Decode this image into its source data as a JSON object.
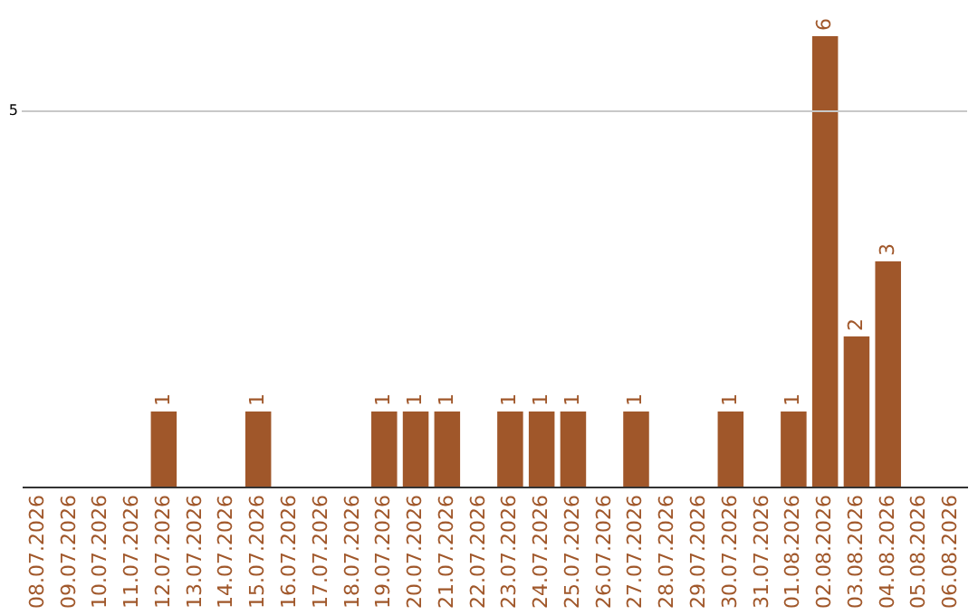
{
  "chart_data": {
    "type": "bar",
    "categories": [
      "08.07.2026",
      "09.07.2026",
      "10.07.2026",
      "11.07.2026",
      "12.07.2026",
      "13.07.2026",
      "14.07.2026",
      "15.07.2026",
      "16.07.2026",
      "17.07.2026",
      "18.07.2026",
      "19.07.2026",
      "20.07.2026",
      "21.07.2026",
      "22.07.2026",
      "23.07.2026",
      "24.07.2026",
      "25.07.2026",
      "26.07.2026",
      "27.07.2026",
      "28.07.2026",
      "29.07.2026",
      "30.07.2026",
      "31.07.2026",
      "01.08.2026",
      "02.08.2026",
      "03.08.2026",
      "04.08.2026",
      "05.08.2026",
      "06.08.2026"
    ],
    "values": [
      0,
      0,
      0,
      0,
      1,
      0,
      0,
      1,
      0,
      0,
      0,
      1,
      1,
      1,
      0,
      1,
      1,
      1,
      0,
      1,
      0,
      0,
      1,
      0,
      1,
      6,
      2,
      3,
      0,
      0
    ],
    "value_labels": [
      null,
      null,
      null,
      null,
      "1",
      null,
      null,
      "1",
      null,
      null,
      null,
      "1",
      "1",
      "1",
      null,
      "1",
      "1",
      "1",
      null,
      "1",
      null,
      null,
      "1",
      null,
      "1",
      "6",
      "2",
      "3",
      null,
      null
    ],
    "color": "#a0572a",
    "ref_lines": [
      {
        "axis": "y",
        "value": 5,
        "label": "5",
        "color": "#c8c8c8"
      }
    ]
  }
}
